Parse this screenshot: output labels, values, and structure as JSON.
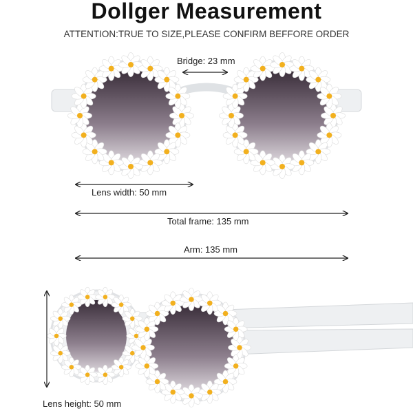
{
  "title": "Dollger Measurement",
  "subtitle": "ATTENTION:TRUE TO SIZE,PLEASE CONFIRM BEFFORE ORDER",
  "measurements": {
    "bridge": "Bridge: 23 mm",
    "lens_width": "Lens width: 50 mm",
    "total_frame": "Total frame: 135 mm",
    "arm": "Arm: 135 mm",
    "lens_height": "Lens height: 50 mm"
  },
  "colors": {
    "petal": "#ffffff",
    "daisy_center": "#f2b01e",
    "lens": "#4a3d4a",
    "frame": "#e8eaec"
  }
}
